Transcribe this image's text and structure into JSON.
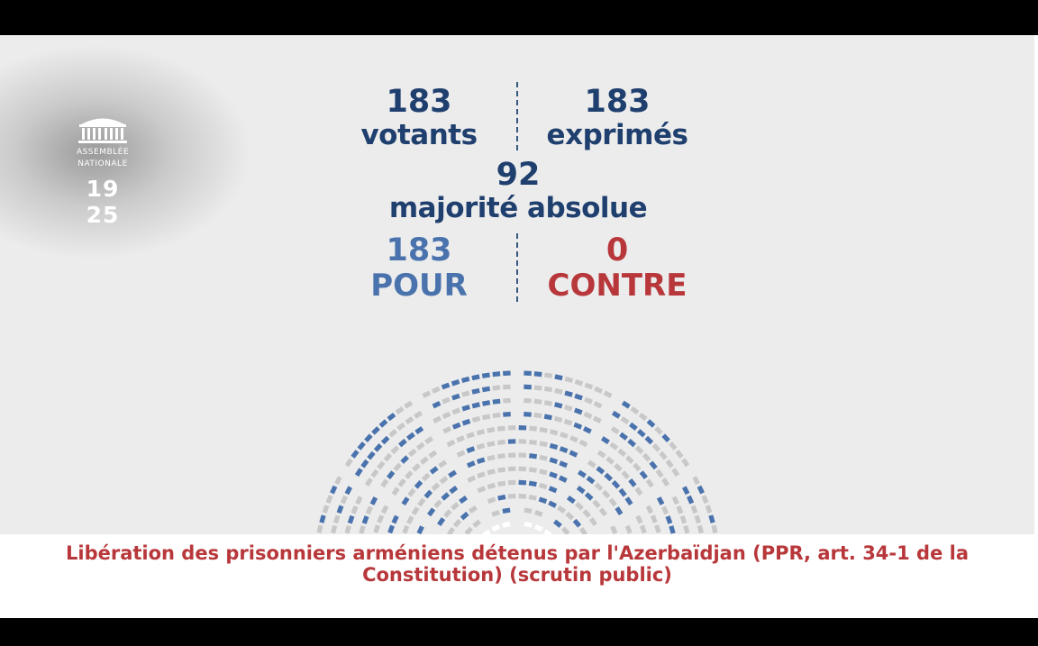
{
  "logo": {
    "org_line1": "ASSEMBLÉE",
    "org_line2": "NATIONALE",
    "time": "19 25"
  },
  "votes": {
    "votants": {
      "value": "183",
      "label": "votants"
    },
    "exprimes": {
      "value": "183",
      "label": "exprimés"
    },
    "majorite": {
      "value": "92",
      "label": "majorité absolue"
    },
    "pour": {
      "value": "183",
      "label": "POUR"
    },
    "contre": {
      "value": "0",
      "label": "CONTRE"
    }
  },
  "caption": {
    "line1": "Libération des prisonniers arméniens détenus par l'Azerbaïdjan (PPR, art. 34-1 de la",
    "line2": "Constitution) (scrutin public)"
  },
  "colors": {
    "navy": "#1f3f6e",
    "pour": "#4a73ad",
    "contre": "#b8373a",
    "seat_empty": "#c8c8c8",
    "seat_pour": "#4a73ad"
  },
  "hemicycle": {
    "rows": 12,
    "seats_pour": 183
  }
}
